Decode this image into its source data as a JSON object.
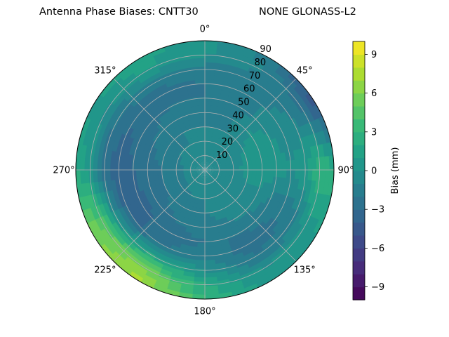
{
  "header": {
    "title_left": "Antenna Phase Biases: CNTT30",
    "title_right": "NONE GLONASS-L2"
  },
  "chart_data": {
    "type": "heatmap",
    "projection": "polar",
    "title": "Antenna Phase Biases: CNTT30",
    "subtitle": "NONE GLONASS-L2",
    "azimuth_ticks": [
      {
        "deg": 0,
        "label": "0°"
      },
      {
        "deg": 45,
        "label": "45°"
      },
      {
        "deg": 90,
        "label": "90°"
      },
      {
        "deg": 135,
        "label": "135°"
      },
      {
        "deg": 180,
        "label": "180°"
      },
      {
        "deg": 225,
        "label": "225°"
      },
      {
        "deg": 270,
        "label": "270°"
      },
      {
        "deg": 315,
        "label": "315°"
      }
    ],
    "radial_ticks": [
      {
        "value": 10,
        "label": "10"
      },
      {
        "value": 20,
        "label": "20"
      },
      {
        "value": 30,
        "label": "30"
      },
      {
        "value": 40,
        "label": "40"
      },
      {
        "value": 50,
        "label": "50"
      },
      {
        "value": 60,
        "label": "60"
      },
      {
        "value": 70,
        "label": "70"
      },
      {
        "value": 80,
        "label": "80"
      },
      {
        "value": 90,
        "label": "90"
      }
    ],
    "rlim": [
      0,
      90
    ],
    "grid": true,
    "colorbar": {
      "label": "Bias (mm)",
      "range": [
        -10,
        10
      ],
      "colormap": "viridis",
      "levels": 20,
      "ticks": [
        {
          "value": -9,
          "label": "−9"
        },
        {
          "value": -6,
          "label": "−6"
        },
        {
          "value": -3,
          "label": "−3"
        },
        {
          "value": 0,
          "label": "0"
        },
        {
          "value": 3,
          "label": "3"
        },
        {
          "value": 6,
          "label": "6"
        },
        {
          "value": 9,
          "label": "9"
        }
      ]
    },
    "bias_field": {
      "elevation_rings": [
        0,
        10,
        20,
        30,
        40,
        50,
        60,
        70,
        80,
        90
      ],
      "azimuth_step_deg": 30,
      "azimuths": [
        0,
        30,
        60,
        90,
        120,
        150,
        180,
        210,
        240,
        270,
        300,
        330
      ],
      "values_mm": [
        [
          0.0,
          0.0,
          0.0,
          0.0,
          0.0,
          0.0,
          0.0,
          0.0,
          0.0,
          0.0,
          0.0,
          0.0
        ],
        [
          -0.5,
          -0.5,
          -0.5,
          -0.5,
          -0.5,
          -0.5,
          -0.5,
          -0.5,
          -0.5,
          -0.5,
          -0.5,
          -0.5
        ],
        [
          -1.0,
          -1.0,
          -0.5,
          -0.5,
          -1.0,
          -1.0,
          -1.0,
          -1.0,
          -1.5,
          -1.5,
          -1.0,
          -1.0
        ],
        [
          -1.0,
          -1.0,
          0.0,
          0.5,
          -0.5,
          -0.5,
          -1.0,
          -1.5,
          -2.0,
          -2.0,
          -1.5,
          -1.0
        ],
        [
          -1.5,
          -1.0,
          0.5,
          1.0,
          -0.5,
          -1.0,
          -1.5,
          -2.0,
          -2.5,
          -2.5,
          -2.0,
          -1.5
        ],
        [
          -2.0,
          -1.5,
          0.0,
          0.5,
          -1.5,
          -2.0,
          -2.0,
          -2.5,
          -3.5,
          -3.0,
          -2.5,
          -2.0
        ],
        [
          -2.0,
          -1.5,
          -0.5,
          0.0,
          -2.0,
          -2.5,
          -1.5,
          -2.0,
          -3.5,
          -4.0,
          -3.0,
          -2.5
        ],
        [
          -1.5,
          -1.5,
          -1.0,
          1.0,
          -1.5,
          -2.0,
          0.0,
          2.0,
          0.5,
          -2.5,
          -2.0,
          -1.5
        ],
        [
          0.0,
          -1.0,
          -2.5,
          3.0,
          0.5,
          0.0,
          2.0,
          6.0,
          5.0,
          0.5,
          0.0,
          1.0
        ],
        [
          0.5,
          -1.5,
          -5.0,
          2.5,
          1.0,
          0.5,
          3.0,
          7.5,
          6.0,
          2.0,
          1.0,
          1.5
        ]
      ]
    }
  }
}
